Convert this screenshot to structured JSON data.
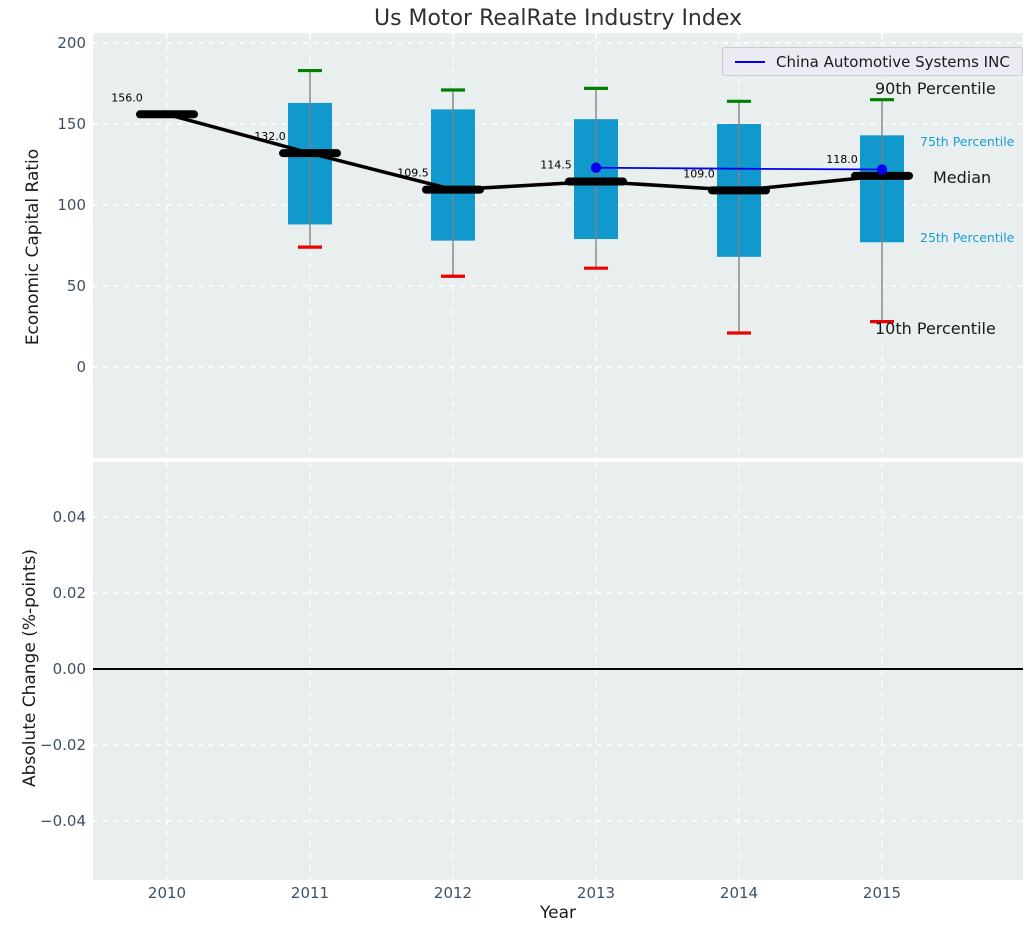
{
  "chart_data": {
    "type": "boxplot",
    "title": "Us Motor RealRate Industry Index",
    "x_label": "Year",
    "categories": [
      "2010",
      "2011",
      "2012",
      "2013",
      "2014",
      "2015"
    ],
    "top_panel": {
      "y_label": "Economic Capital Ratio",
      "y_ticks": [
        {
          "label": "200",
          "value": 200
        },
        {
          "label": "150",
          "value": 150
        },
        {
          "label": "100",
          "value": 100
        },
        {
          "label": "50",
          "value": 50
        },
        {
          "label": "0",
          "value": 0
        }
      ],
      "y_range": [
        -56,
        206
      ],
      "grid": true,
      "boxes": [
        {
          "year": 2010,
          "median": 156.0,
          "median_label": "156.0"
        },
        {
          "year": 2011,
          "median": 132.0,
          "median_label": "132.0",
          "q1": 88,
          "q3": 163,
          "p10": 74,
          "p90": 183
        },
        {
          "year": 2012,
          "median": 109.5,
          "median_label": "109.5",
          "q1": 78,
          "q3": 159,
          "p10": 56,
          "p90": 171
        },
        {
          "year": 2013,
          "median": 114.5,
          "median_label": "114.5",
          "q1": 79,
          "q3": 153,
          "p10": 61,
          "p90": 172
        },
        {
          "year": 2014,
          "median": 109.0,
          "median_label": "109.0",
          "q1": 68,
          "q3": 150,
          "p10": 21,
          "p90": 164
        },
        {
          "year": 2015,
          "median": 118.0,
          "median_label": "118.0",
          "q1": 77,
          "q3": 143,
          "p10": 28,
          "p90": 165
        }
      ],
      "company_series": {
        "name": "China Automotive Systems INC",
        "x": [
          2013,
          2014,
          2015
        ],
        "values": [
          123,
          122.4,
          121.9
        ]
      },
      "percentile_annotations": [
        {
          "text": "90th Percentile",
          "anchor": "p90",
          "style": "large"
        },
        {
          "text": "75th Percentile",
          "anchor": "q3",
          "style": "small"
        },
        {
          "text": "Median",
          "anchor": "median",
          "style": "large"
        },
        {
          "text": "25th Percentile",
          "anchor": "q1",
          "style": "small"
        },
        {
          "text": "10th Percentile",
          "anchor": "p10",
          "style": "large"
        }
      ]
    },
    "bottom_panel": {
      "y_label": "Absolute Change (%-points)",
      "y_ticks": [
        {
          "label": "0.04",
          "value": 0.04
        },
        {
          "label": "0.02",
          "value": 0.02
        },
        {
          "label": "0.00",
          "value": 0
        },
        {
          "label": "−0.02",
          "value": -0.02
        },
        {
          "label": "−0.04",
          "value": -0.04
        }
      ],
      "zero_line": true,
      "series": []
    },
    "legend": {
      "position": "upper right",
      "entries": [
        {
          "label": "China Automotive Systems INC",
          "color": "#0000ee"
        }
      ]
    },
    "colors": {
      "box_fill": "#1199cd",
      "whisker": "#828282",
      "p90_cap": "#008000",
      "p10_cap": "#ee0000",
      "median": "#000000",
      "company_line": "#0000ee",
      "annotation_cyan": "#1a9cd8",
      "annotation_dark": "#1a1a1a",
      "plot_bg": "#e9eeee",
      "grid": "#ffffff",
      "tick_label": "#3e5063",
      "value_label": "#000000",
      "title": "#303030"
    }
  }
}
